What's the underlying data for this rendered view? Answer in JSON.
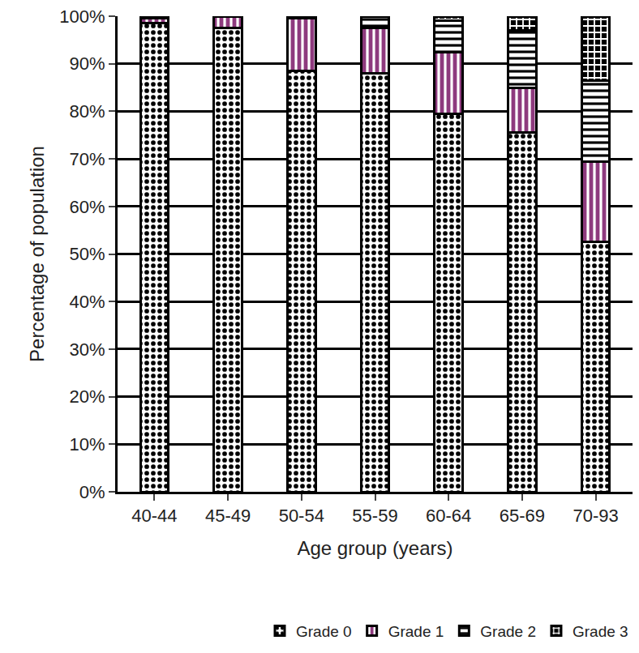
{
  "chart_data": {
    "type": "bar",
    "stacked": true,
    "grid": true,
    "legend": "bottom",
    "x_label": "Age group (years)",
    "y_label": "Percentage of population",
    "categories": [
      "40-44",
      "45-49",
      "50-54",
      "55-59",
      "60-64",
      "65-69",
      "70-93"
    ],
    "series": [
      {
        "name": "Grade 0",
        "color": "#ffffff",
        "marker": "dots",
        "values": [
          98.5,
          97.5,
          88.5,
          88,
          79.5,
          75.5,
          52.5
        ]
      },
      {
        "name": "Grade 1",
        "color": "#8e3a7e",
        "marker": "vertical_stripes",
        "values": [
          1,
          2.5,
          11,
          9.5,
          13,
          9.5,
          17
        ]
      },
      {
        "name": "Grade 2",
        "color": "#ffffff",
        "marker": "horizontal_stripes",
        "values": [
          0.5,
          0,
          0.5,
          2.5,
          6.5,
          12,
          17
        ]
      },
      {
        "name": "Grade 3",
        "color": "#000000",
        "marker": "checks",
        "values": [
          0,
          0,
          0,
          0,
          1,
          3,
          13.5
        ]
      }
    ],
    "ylim": [
      0,
      100
    ],
    "yticks": [
      {
        "value": 0,
        "label": "0%"
      },
      {
        "value": 10,
        "label": "10%"
      },
      {
        "value": 20,
        "label": "20%"
      },
      {
        "value": 30,
        "label": "30%"
      },
      {
        "value": 40,
        "label": "40%"
      },
      {
        "value": 50,
        "label": "50%"
      },
      {
        "value": 60,
        "label": "60%"
      },
      {
        "value": 70,
        "label": "70%"
      },
      {
        "value": 80,
        "label": "80%"
      },
      {
        "value": 90,
        "label": "90%"
      },
      {
        "value": 100,
        "label": "100%"
      }
    ]
  }
}
